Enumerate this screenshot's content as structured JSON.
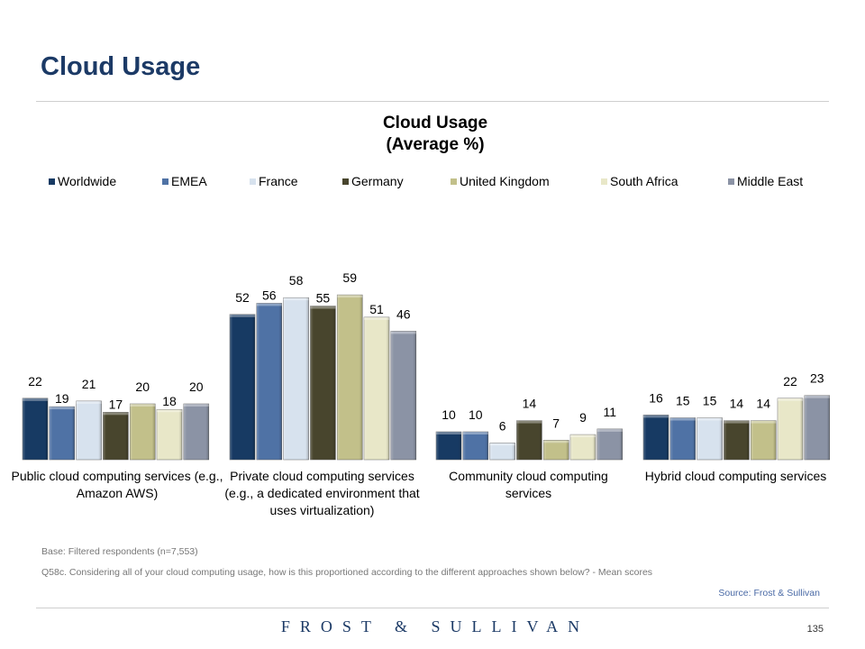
{
  "page": {
    "title": "Cloud Usage",
    "base_note": "Base: Filtered respondents (n=7,553)",
    "question_note": "Q58c. Considering all of your cloud computing usage, how is this proportioned according to the different approaches shown below? - Mean scores",
    "source": "Source: Frost & Sullivan",
    "logo": "FROST & SULLIVAN",
    "page_number": "135"
  },
  "chart_data": {
    "type": "bar",
    "title_line1": "Cloud Usage",
    "title_line2": "(Average %)",
    "categories": [
      "Public cloud computing services (e.g., Amazon AWS)",
      "Private cloud computing services (e.g., a dedicated environment that uses virtualization)",
      "Community cloud computing services",
      "Hybrid cloud computing services"
    ],
    "series": [
      {
        "name": "Worldwide",
        "color": "#173a63",
        "values": [
          22,
          52,
          10,
          16
        ]
      },
      {
        "name": "EMEA",
        "color": "#4f72a5",
        "values": [
          19,
          56,
          10,
          15
        ]
      },
      {
        "name": "France",
        "color": "#d7e2ee",
        "values": [
          21,
          58,
          6,
          15
        ]
      },
      {
        "name": "Germany",
        "color": "#48452d",
        "values": [
          17,
          55,
          14,
          14
        ]
      },
      {
        "name": "United Kingdom",
        "color": "#c2c08a",
        "values": [
          20,
          59,
          7,
          14
        ]
      },
      {
        "name": "South Africa",
        "color": "#e8e7c8",
        "values": [
          18,
          51,
          9,
          22
        ]
      },
      {
        "name": "Middle East",
        "color": "#8b93a5",
        "values": [
          20,
          46,
          11,
          23
        ]
      }
    ],
    "legend_position": "top",
    "grid": false
  }
}
